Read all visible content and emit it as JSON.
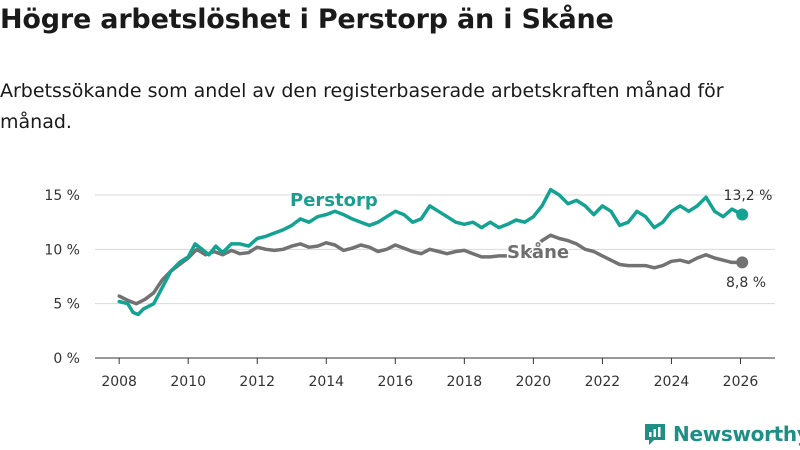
{
  "title": "Högre arbetslöshet i Perstorp än i Skåne",
  "subtitle": "Arbetssökande som andel av den registerbaserade arbetskraften månad för månad.",
  "brand": {
    "name": "Newsworthy",
    "icon": "newsworthy-logo-icon"
  },
  "colors": {
    "perstorp": "#14a392",
    "skane": "#727272",
    "grid": "#d9d9d9",
    "axis": "#333333",
    "label_perstorp": "#1b9e8f",
    "label_skane": "#6e6e6e"
  },
  "chart_data": {
    "type": "line",
    "x_range": [
      2007.3,
      2027.0
    ],
    "ylim": [
      0,
      15
    ],
    "yticks": [
      0,
      5,
      10,
      15
    ],
    "ytick_labels": [
      "0 %",
      "5 %",
      "10 %",
      "15 %"
    ],
    "xticks": [
      2008,
      2010,
      2012,
      2014,
      2016,
      2018,
      2020,
      2022,
      2024,
      2026
    ],
    "xtick_labels": [
      "2008",
      "2010",
      "2012",
      "2014",
      "2016",
      "2018",
      "2020",
      "2022",
      "2024",
      "2026"
    ],
    "grid": true,
    "series": [
      {
        "name": "Perstorp",
        "label": "Perstorp",
        "end_label": "13,2 %",
        "points": [
          [
            2008.0,
            5.2
          ],
          [
            2008.25,
            5.0
          ],
          [
            2008.4,
            4.2
          ],
          [
            2008.55,
            4.0
          ],
          [
            2008.7,
            4.5
          ],
          [
            2009.0,
            5.0
          ],
          [
            2009.25,
            6.5
          ],
          [
            2009.5,
            8.0
          ],
          [
            2009.75,
            8.8
          ],
          [
            2010.0,
            9.3
          ],
          [
            2010.2,
            10.5
          ],
          [
            2010.4,
            10.0
          ],
          [
            2010.6,
            9.5
          ],
          [
            2010.8,
            10.3
          ],
          [
            2011.0,
            9.7
          ],
          [
            2011.25,
            10.5
          ],
          [
            2011.5,
            10.5
          ],
          [
            2011.75,
            10.3
          ],
          [
            2012.0,
            11.0
          ],
          [
            2012.25,
            11.2
          ],
          [
            2012.5,
            11.5
          ],
          [
            2012.75,
            11.8
          ],
          [
            2013.0,
            12.2
          ],
          [
            2013.25,
            12.8
          ],
          [
            2013.5,
            12.5
          ],
          [
            2013.75,
            13.0
          ],
          [
            2014.0,
            13.2
          ],
          [
            2014.25,
            13.5
          ],
          [
            2014.5,
            13.2
          ],
          [
            2014.75,
            12.8
          ],
          [
            2015.0,
            12.5
          ],
          [
            2015.25,
            12.2
          ],
          [
            2015.5,
            12.5
          ],
          [
            2015.75,
            13.0
          ],
          [
            2016.0,
            13.5
          ],
          [
            2016.25,
            13.2
          ],
          [
            2016.5,
            12.5
          ],
          [
            2016.75,
            12.8
          ],
          [
            2017.0,
            14.0
          ],
          [
            2017.25,
            13.5
          ],
          [
            2017.5,
            13.0
          ],
          [
            2017.75,
            12.5
          ],
          [
            2018.0,
            12.3
          ],
          [
            2018.25,
            12.5
          ],
          [
            2018.5,
            12.0
          ],
          [
            2018.75,
            12.5
          ],
          [
            2019.0,
            12.0
          ],
          [
            2019.25,
            12.3
          ],
          [
            2019.5,
            12.7
          ],
          [
            2019.75,
            12.5
          ],
          [
            2020.0,
            13.0
          ],
          [
            2020.25,
            14.0
          ],
          [
            2020.5,
            15.5
          ],
          [
            2020.75,
            15.0
          ],
          [
            2021.0,
            14.2
          ],
          [
            2021.25,
            14.5
          ],
          [
            2021.5,
            14.0
          ],
          [
            2021.75,
            13.2
          ],
          [
            2022.0,
            14.0
          ],
          [
            2022.25,
            13.5
          ],
          [
            2022.5,
            12.2
          ],
          [
            2022.75,
            12.5
          ],
          [
            2023.0,
            13.5
          ],
          [
            2023.25,
            13.0
          ],
          [
            2023.5,
            12.0
          ],
          [
            2023.75,
            12.5
          ],
          [
            2024.0,
            13.5
          ],
          [
            2024.25,
            14.0
          ],
          [
            2024.5,
            13.5
          ],
          [
            2024.75,
            14.0
          ],
          [
            2025.0,
            14.8
          ],
          [
            2025.25,
            13.5
          ],
          [
            2025.5,
            13.0
          ],
          [
            2025.75,
            13.7
          ],
          [
            2026.05,
            13.2
          ]
        ]
      },
      {
        "name": "Skåne",
        "label": "Skåne",
        "end_label": "8,8 %",
        "points": [
          [
            2008.0,
            5.7
          ],
          [
            2008.25,
            5.3
          ],
          [
            2008.5,
            5.0
          ],
          [
            2008.75,
            5.4
          ],
          [
            2009.0,
            6.0
          ],
          [
            2009.25,
            7.2
          ],
          [
            2009.5,
            8.0
          ],
          [
            2009.75,
            8.6
          ],
          [
            2010.0,
            9.2
          ],
          [
            2010.25,
            10.0
          ],
          [
            2010.5,
            9.5
          ],
          [
            2010.75,
            9.8
          ],
          [
            2011.0,
            9.5
          ],
          [
            2011.25,
            9.9
          ],
          [
            2011.5,
            9.6
          ],
          [
            2011.75,
            9.7
          ],
          [
            2012.0,
            10.2
          ],
          [
            2012.25,
            10.0
          ],
          [
            2012.5,
            9.9
          ],
          [
            2012.75,
            10.0
          ],
          [
            2013.0,
            10.3
          ],
          [
            2013.25,
            10.5
          ],
          [
            2013.5,
            10.2
          ],
          [
            2013.75,
            10.3
          ],
          [
            2014.0,
            10.6
          ],
          [
            2014.25,
            10.4
          ],
          [
            2014.5,
            9.9
          ],
          [
            2014.75,
            10.1
          ],
          [
            2015.0,
            10.4
          ],
          [
            2015.25,
            10.2
          ],
          [
            2015.5,
            9.8
          ],
          [
            2015.75,
            10.0
          ],
          [
            2016.0,
            10.4
          ],
          [
            2016.25,
            10.1
          ],
          [
            2016.5,
            9.8
          ],
          [
            2016.75,
            9.6
          ],
          [
            2017.0,
            10.0
          ],
          [
            2017.25,
            9.8
          ],
          [
            2017.5,
            9.6
          ],
          [
            2017.75,
            9.8
          ],
          [
            2018.0,
            9.9
          ],
          [
            2018.25,
            9.6
          ],
          [
            2018.5,
            9.3
          ],
          [
            2018.75,
            9.3
          ],
          [
            2019.0,
            9.4
          ],
          [
            2019.25,
            9.4
          ],
          [
            2019.5,
            9.5
          ],
          [
            2019.75,
            9.6
          ],
          [
            2020.0,
            10.0
          ],
          [
            2020.25,
            10.8
          ],
          [
            2020.5,
            11.3
          ],
          [
            2020.75,
            11.0
          ],
          [
            2021.0,
            10.8
          ],
          [
            2021.25,
            10.5
          ],
          [
            2021.5,
            10.0
          ],
          [
            2021.75,
            9.8
          ],
          [
            2022.0,
            9.4
          ],
          [
            2022.25,
            9.0
          ],
          [
            2022.5,
            8.6
          ],
          [
            2022.75,
            8.5
          ],
          [
            2023.0,
            8.5
          ],
          [
            2023.25,
            8.5
          ],
          [
            2023.5,
            8.3
          ],
          [
            2023.75,
            8.5
          ],
          [
            2024.0,
            8.9
          ],
          [
            2024.25,
            9.0
          ],
          [
            2024.5,
            8.8
          ],
          [
            2024.75,
            9.2
          ],
          [
            2025.0,
            9.5
          ],
          [
            2025.25,
            9.2
          ],
          [
            2025.5,
            9.0
          ],
          [
            2025.75,
            8.8
          ],
          [
            2026.05,
            8.8
          ]
        ]
      }
    ]
  }
}
